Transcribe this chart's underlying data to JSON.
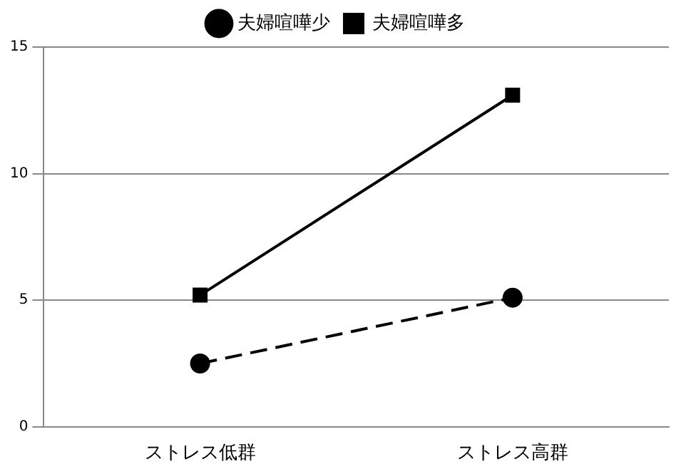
{
  "chart_data": {
    "type": "line",
    "categories": [
      "ストレス低群",
      "ストレス高群"
    ],
    "series": [
      {
        "name": "夫婦喧嘩少",
        "color": "#000000",
        "values": [
          2.5,
          5.1
        ],
        "marker": "circle",
        "line_style": "dashed"
      },
      {
        "name": "夫婦喧嘩多",
        "color": "#000000",
        "values": [
          5.2,
          13.1
        ],
        "marker": "square",
        "line_style": "solid"
      }
    ],
    "ylim": [
      0,
      15
    ],
    "yticks": [
      0,
      5,
      10,
      15
    ],
    "grid": "y",
    "legend": "top"
  }
}
